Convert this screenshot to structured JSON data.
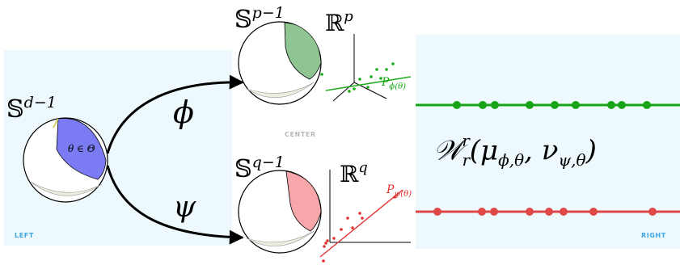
{
  "panels": {
    "left_label": "LEFT",
    "center_label": "CENTER",
    "right_label": "RIGHT"
  },
  "spheres": {
    "input": {
      "symbol": "𝕊",
      "superscript": "d−1",
      "region_label": "θ ∈ Θ",
      "fill": "#7b7bf3"
    },
    "top": {
      "symbol": "𝕊",
      "superscript": "p−1",
      "fill": "#8fc593"
    },
    "bottom": {
      "symbol": "𝕊",
      "superscript": "q−1",
      "fill": "#f7a6a9"
    }
  },
  "maps": {
    "upper": "ϕ",
    "lower": "ψ"
  },
  "spaces": {
    "top": {
      "symbol": "ℝ",
      "superscript": "p",
      "projection": "P",
      "projection_sub": "ϕ(θ)",
      "color": "#1aaa1a"
    },
    "bottom": {
      "symbol": "ℝ",
      "superscript": "q",
      "projection": "P",
      "projection_sub": "ψ(θ)",
      "color": "#e03030"
    }
  },
  "distance": {
    "main": "𝒲",
    "sub": "r",
    "sup": "r",
    "args": "(μ",
    "mu_sub": "ϕ,θ",
    "comma": ", ν",
    "nu_sub": "ψ,θ",
    "close": ")"
  },
  "lines": {
    "green_color": "#17a517",
    "red_color": "#e04848"
  }
}
